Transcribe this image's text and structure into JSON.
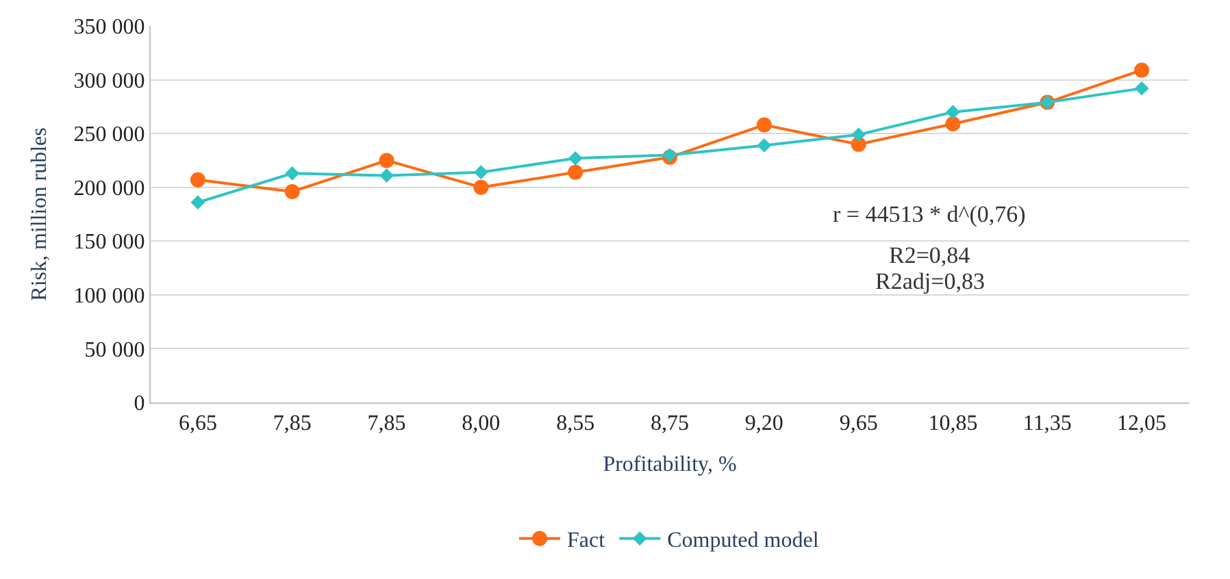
{
  "chart_data": {
    "type": "line",
    "xlabel": "Profitability, %",
    "ylabel": "Risk, million rubles",
    "categories": [
      "6,65",
      "7,85",
      "7,85",
      "8,00",
      "8,55",
      "8,75",
      "9,20",
      "9,65",
      "10,85",
      "11,35",
      "12,05"
    ],
    "series": [
      {
        "name": "Fact",
        "color": "#ff6a13",
        "marker": "circle",
        "values": [
          207000,
          196000,
          225000,
          200000,
          214000,
          228000,
          258000,
          240000,
          259000,
          279000,
          309000
        ]
      },
      {
        "name": "Computed model",
        "color": "#2ec4c4",
        "marker": "diamond",
        "values": [
          186000,
          213000,
          211000,
          214000,
          227000,
          230000,
          239000,
          249000,
          270000,
          279000,
          292000
        ]
      }
    ],
    "ylim": [
      0,
      350000
    ],
    "yticks": [
      {
        "value": 0,
        "label": "0"
      },
      {
        "value": 50000,
        "label": "50 000"
      },
      {
        "value": 100000,
        "label": "100 000"
      },
      {
        "value": 150000,
        "label": "150 000"
      },
      {
        "value": 200000,
        "label": "200 000"
      },
      {
        "value": 250000,
        "label": "250 000"
      },
      {
        "value": 300000,
        "label": "300 000"
      },
      {
        "value": 350000,
        "label": "350 000"
      }
    ],
    "grid": "y",
    "legend": "bottom",
    "annotations": [
      "r = 44513 * d^(0,76)",
      "R2=0,84",
      "R2adj=0,83"
    ]
  }
}
